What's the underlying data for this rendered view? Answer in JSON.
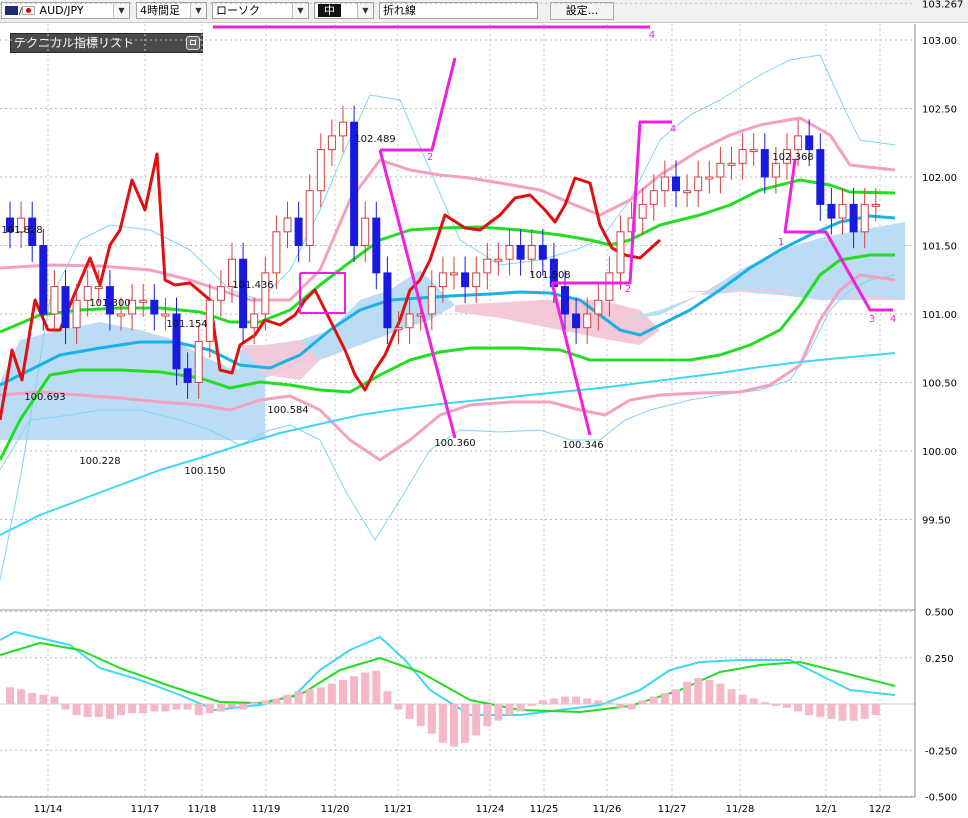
{
  "toolbar": {
    "symbol": "AUD/JPY",
    "timeframe": "4時間足",
    "chart_style": "ローソク",
    "size": "中",
    "line_type": "折れ線",
    "settings_label": "設定..."
  },
  "indicator_panel": {
    "title": "テクニカル指標リスト"
  },
  "price_axis": [
    "103.267",
    "103.00",
    "102.50",
    "102.00",
    "101.50",
    "101.00",
    "100.50",
    "100.00",
    "99.50"
  ],
  "macd_axis": [
    "0.500",
    "0.250",
    "-0.250",
    "-0.500"
  ],
  "date_axis": [
    "11/14",
    "11/17",
    "11/18",
    "11/19",
    "11/20",
    "11/21",
    "11/24",
    "11/25",
    "11/26",
    "11/27",
    "11/28",
    "12/1",
    "12/2"
  ],
  "price_labels": [
    "101.828",
    "101.300",
    "100.693",
    "100.228",
    "101.154",
    "100.150",
    "101.436",
    "100.584",
    "102.489",
    "100.360",
    "101.508",
    "100.346",
    "102.368"
  ],
  "wave_labels": [
    "2",
    "4",
    "2",
    "4",
    "1",
    "3",
    "4"
  ],
  "colors": {
    "bull_candle": "#d04040",
    "bear_candle": "#1a1adf",
    "ichimoku_bull_cloud": "#bcdcf6",
    "ichimoku_bear_cloud": "#f5c8d8",
    "fast_ma": "#1ab2e6",
    "slow_ma": "#40d8f0",
    "mid_band": "#22dd22",
    "band_1sigma": "#f4a0c0",
    "band_2sigma": "#7fd6f0",
    "price_line": "#e01010",
    "trend_lines": "#ee22dd",
    "macd": "#40d8f0",
    "signal": "#22dd22",
    "histogram": "#f4b8c8"
  },
  "chart_data": {
    "type": "candlestick",
    "price_range": [
      99.3,
      103.267
    ],
    "price_ticks": [
      103.267,
      103.0,
      102.5,
      102.0,
      101.5,
      101.0,
      100.5,
      100.0,
      99.5
    ],
    "macd_range": [
      -0.5,
      0.5
    ],
    "macd_ticks": [
      0.5,
      0.25,
      -0.25,
      -0.5
    ],
    "grid": true,
    "annotations": [
      {
        "text": "101.828",
        "value": 101.828
      },
      {
        "text": "101.300",
        "value": 101.3
      },
      {
        "text": "100.693",
        "value": 100.693
      },
      {
        "text": "100.228",
        "value": 100.228
      },
      {
        "text": "101.154",
        "value": 101.154
      },
      {
        "text": "100.150",
        "value": 100.15
      },
      {
        "text": "101.436",
        "value": 101.436
      },
      {
        "text": "100.584",
        "value": 100.584
      },
      {
        "text": "102.489",
        "value": 102.489
      },
      {
        "text": "100.360",
        "value": 100.36
      },
      {
        "text": "101.508",
        "value": 101.508
      },
      {
        "text": "100.346",
        "value": 100.346
      },
      {
        "text": "102.368",
        "value": 102.368
      }
    ],
    "candles_close": [
      101.6,
      101.7,
      101.5,
      101.0,
      101.2,
      100.9,
      101.1,
      101.2,
      101.2,
      101.0,
      101.0,
      101.1,
      101.1,
      101.0,
      101.0,
      100.6,
      100.5,
      100.8,
      101.1,
      101.2,
      101.4,
      100.9,
      101.0,
      101.3,
      101.6,
      101.7,
      101.5,
      101.9,
      102.2,
      102.3,
      102.4,
      101.5,
      101.7,
      101.3,
      100.9,
      100.9,
      101.0,
      101.0,
      101.2,
      101.3,
      101.3,
      101.2,
      101.3,
      101.4,
      101.4,
      101.5,
      101.4,
      101.5,
      101.4,
      101.2,
      101.0,
      100.9,
      101.0,
      101.1,
      101.3,
      101.6,
      101.7,
      101.8,
      101.9,
      102.0,
      101.9,
      101.9,
      102.0,
      102.0,
      102.1,
      102.1,
      102.2,
      102.2,
      102.0,
      102.1,
      102.2,
      102.3,
      102.2,
      101.8,
      101.7,
      101.8,
      101.6,
      101.8,
      101.8
    ],
    "price_line": [
      100.4,
      101.0,
      100.7,
      101.3,
      101.4,
      101.3,
      101.8,
      101.3,
      101.7,
      102.0,
      102.2,
      102.4,
      102.7,
      102.3,
      102.9,
      101.5,
      101.6,
      101.5,
      101.4,
      100.9,
      100.9,
      101.1,
      101.1,
      101.2,
      101.3,
      101.3,
      101.1,
      100.7,
      100.9,
      101.3,
      101.4,
      101.6,
      101.8,
      102.1,
      102.0,
      102.1,
      102.1,
      102.0,
      102.0,
      101.9,
      102.1,
      102.2,
      102.3,
      102.3,
      102.2,
      102.2,
      102.4,
      102.4,
      102.0,
      101.8,
      101.7,
      101.8
    ]
  }
}
